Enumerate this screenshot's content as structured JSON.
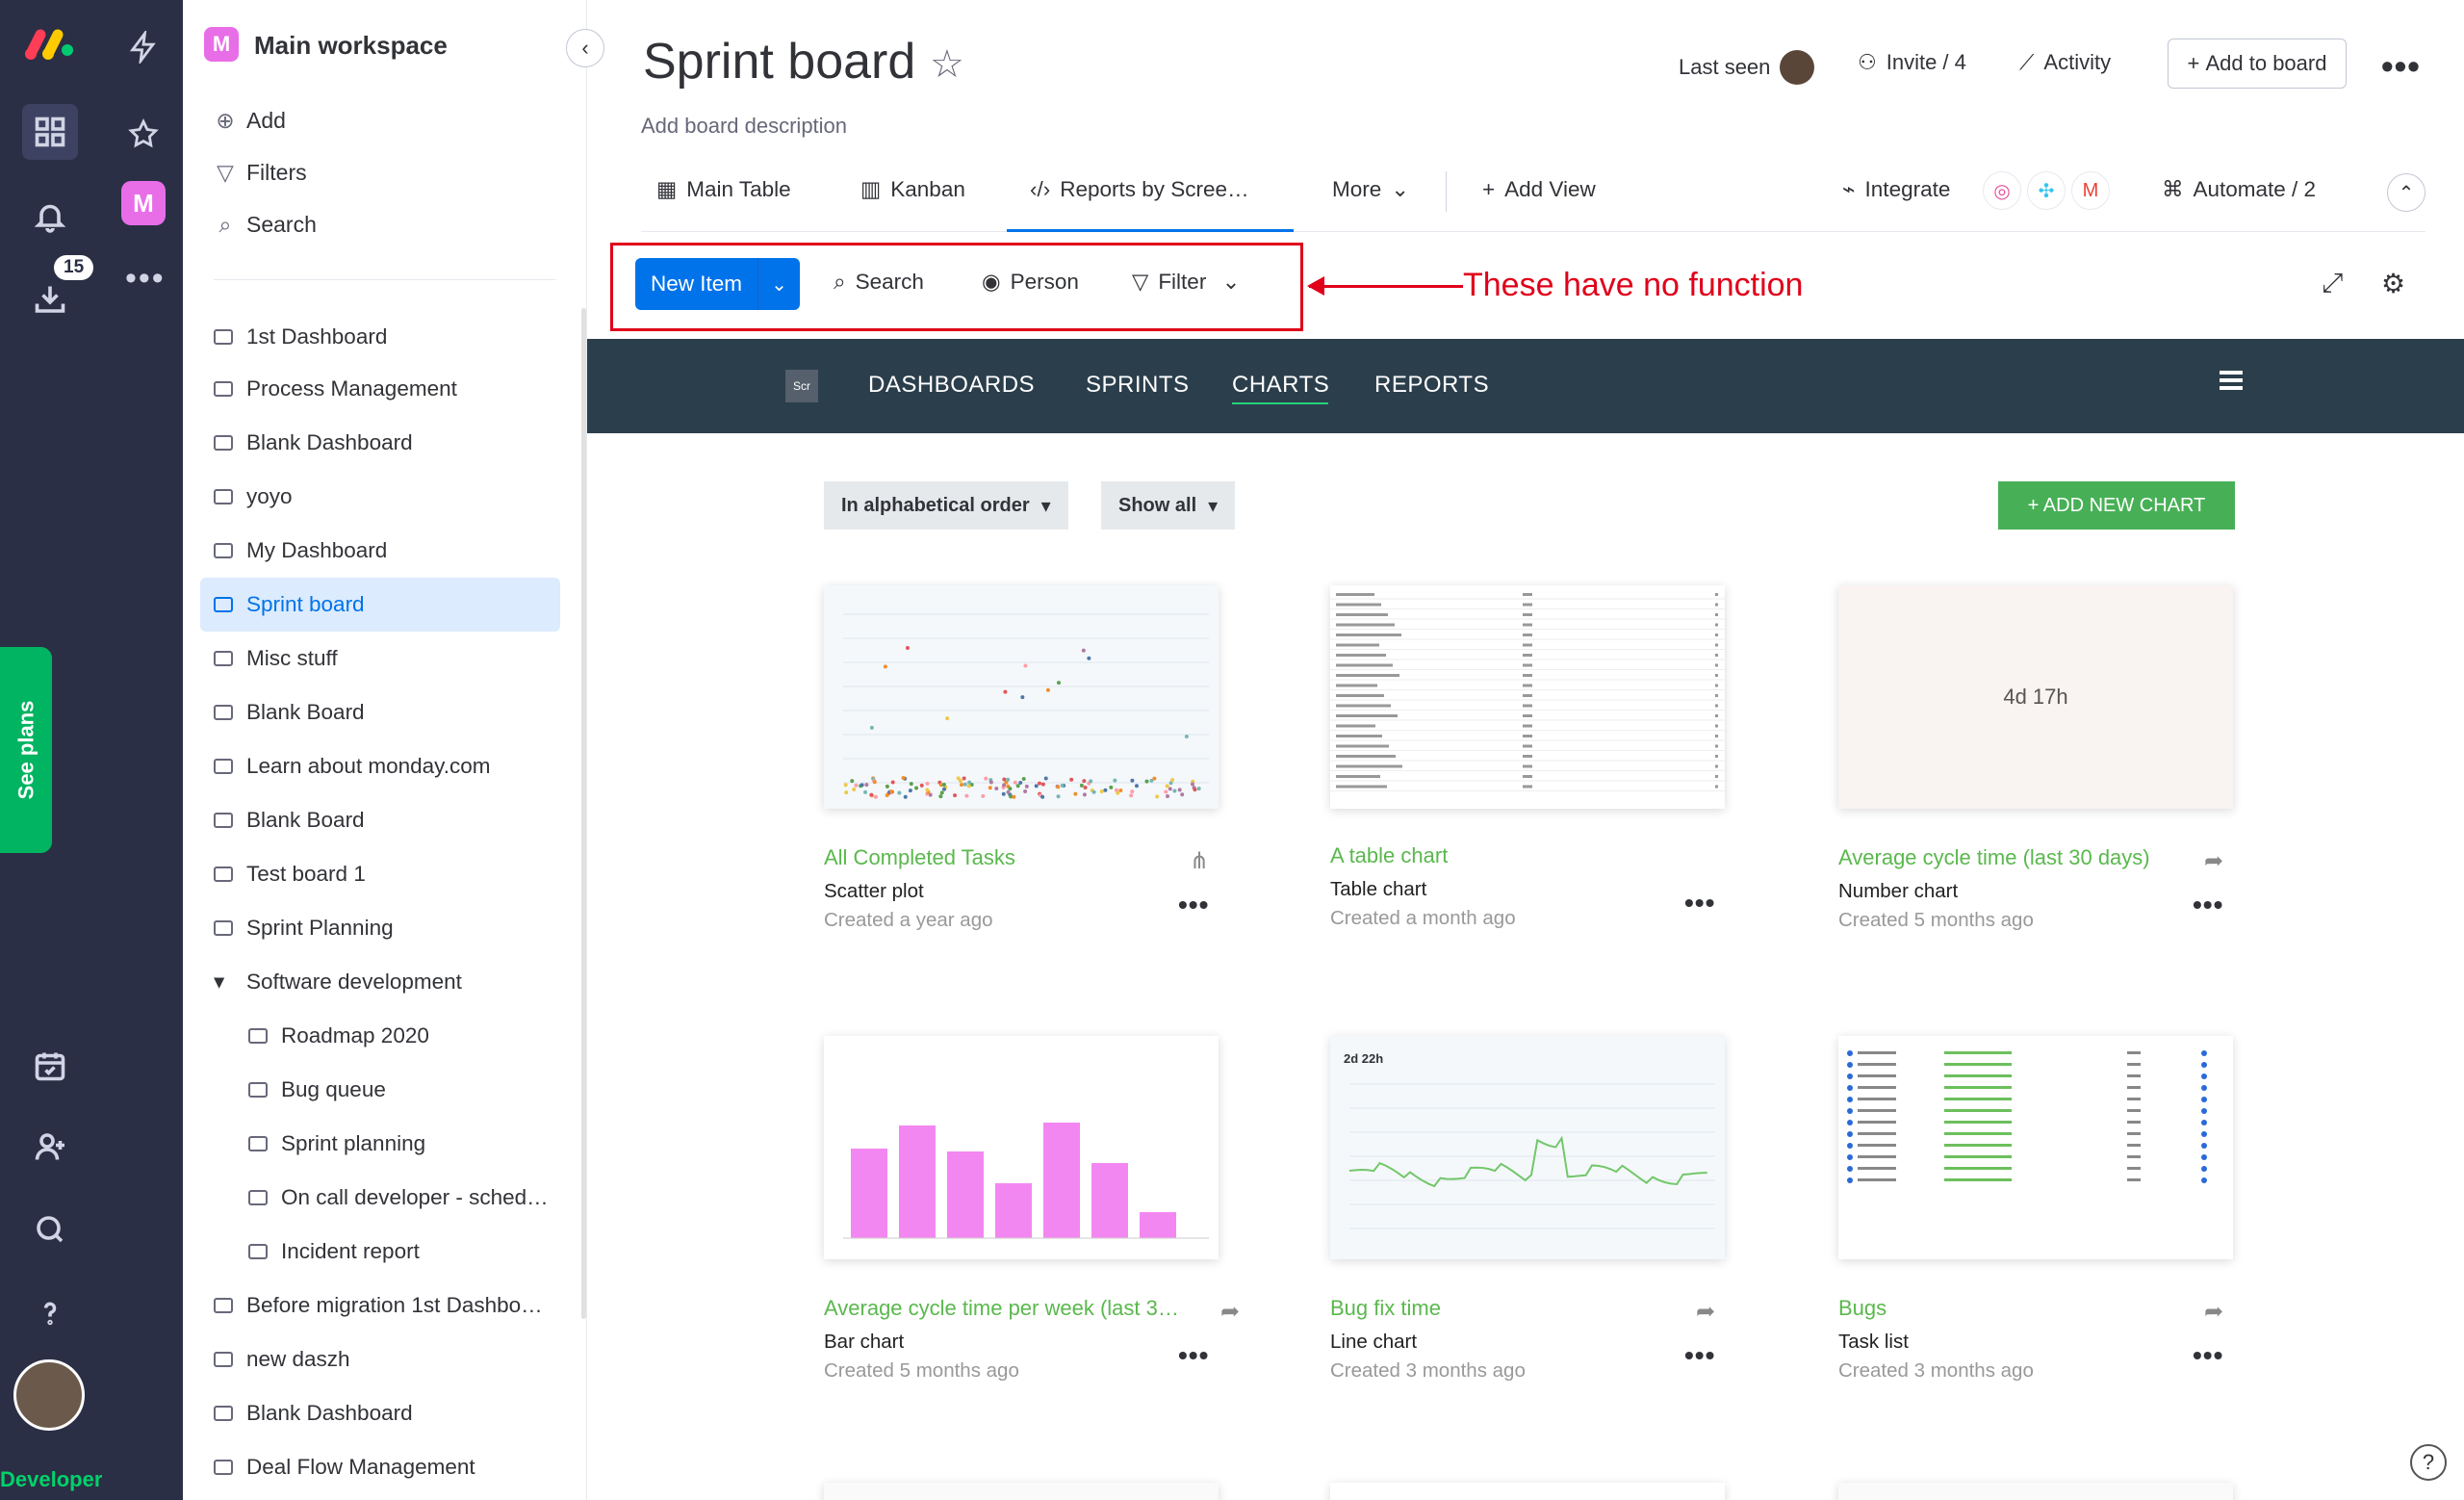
{
  "rail": {
    "badge_count": "15",
    "bottom_label": "Developer",
    "see_plans": "See plans"
  },
  "workspace": {
    "badge": "M",
    "title": "Main workspace",
    "actions": [
      "Add",
      "Filters",
      "Search"
    ],
    "items": [
      {
        "label": "1st Dashboard",
        "type": "dashboard"
      },
      {
        "label": "Process Management",
        "type": "board"
      },
      {
        "label": "Blank Dashboard",
        "type": "dashboard"
      },
      {
        "label": "yoyo",
        "type": "dashboard"
      },
      {
        "label": "My Dashboard",
        "type": "dashboard"
      },
      {
        "label": "Sprint board",
        "type": "board",
        "selected": true
      },
      {
        "label": "Misc stuff",
        "type": "board"
      },
      {
        "label": "Blank Board",
        "type": "board"
      },
      {
        "label": "Learn about monday.com",
        "type": "board"
      },
      {
        "label": "Blank Board",
        "type": "board"
      },
      {
        "label": "Test board 1",
        "type": "board"
      },
      {
        "label": "Sprint Planning",
        "type": "board"
      },
      {
        "label": "Software development",
        "type": "folder"
      },
      {
        "label": "Roadmap 2020",
        "type": "board",
        "sub": true
      },
      {
        "label": "Bug queue",
        "type": "board",
        "sub": true
      },
      {
        "label": "Sprint planning",
        "type": "board",
        "sub": true
      },
      {
        "label": "On call developer - sched…",
        "type": "board",
        "sub": true
      },
      {
        "label": "Incident report",
        "type": "board",
        "sub": true
      },
      {
        "label": "Before migration 1st Dashbo…",
        "type": "dashboard"
      },
      {
        "label": "new daszh",
        "type": "dashboard"
      },
      {
        "label": "Blank Dashboard",
        "type": "dashboard"
      },
      {
        "label": "Deal Flow Management",
        "type": "board"
      }
    ]
  },
  "board": {
    "title": "Sprint board",
    "description": "Add board description",
    "last_seen": "Last seen",
    "invite": "Invite / 4",
    "activity": "Activity",
    "add_to_board": "Add to board",
    "tabs": [
      "Main Table",
      "Kanban",
      "Reports by Scree…",
      "More"
    ],
    "add_view": "Add View",
    "integrate": "Integrate",
    "automate": "Automate / 2"
  },
  "toolbar": {
    "new_item": "New Item",
    "search": "Search",
    "person": "Person",
    "filter": "Filter",
    "annotation": "These have no function"
  },
  "app": {
    "logo": "Scr",
    "nav": [
      "DASHBOARDS",
      "SPRINTS",
      "CHARTS",
      "REPORTS"
    ],
    "active_nav": "CHARTS",
    "sort": "In alphabetical order",
    "show": "Show all",
    "add_chart": "+ ADD NEW CHART",
    "cards": [
      {
        "title": "All Completed Tasks",
        "type": "Scatter plot",
        "created": "Created a year ago"
      },
      {
        "title": "A table chart",
        "type": "Table chart",
        "created": "Created a month ago"
      },
      {
        "title": "Average cycle time (last 30 days)",
        "type": "Number chart",
        "created": "Created 5 months ago",
        "value": "4d 17h"
      },
      {
        "title": "Average cycle time per week (last 3…",
        "type": "Bar chart",
        "created": "Created 5 months ago"
      },
      {
        "title": "Bug fix time",
        "type": "Line chart",
        "created": "Created 3 months ago",
        "value": "2d 22h"
      },
      {
        "title": "Bugs",
        "type": "Task list",
        "created": "Created 3 months ago"
      }
    ]
  },
  "colors": {
    "accent": "#0073ea",
    "green": "#5ab84d",
    "red_annotation": "#e0001a",
    "rail": "#2b2f45",
    "appnav": "#2b3e4b"
  }
}
